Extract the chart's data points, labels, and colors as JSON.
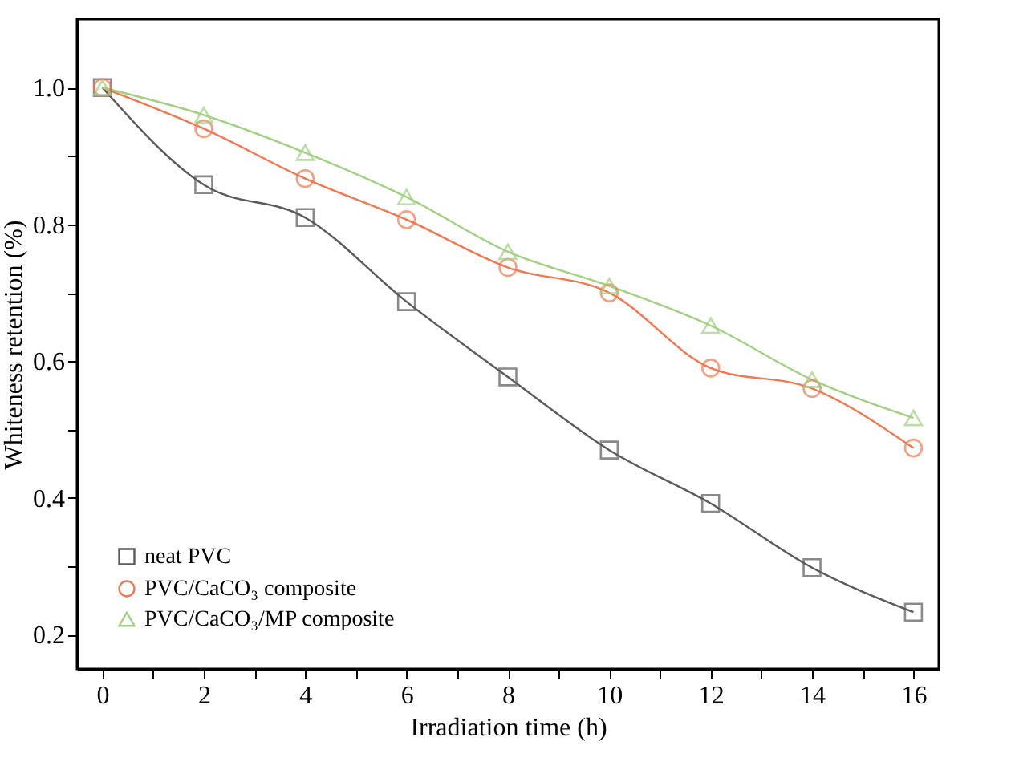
{
  "chart_data": {
    "type": "line",
    "xlabel": "Irradiation time (h)",
    "ylabel": "Whiteness retention (%)",
    "x": [
      0,
      2,
      4,
      6,
      8,
      10,
      12,
      14,
      16
    ],
    "series": [
      {
        "name": "neat PVC",
        "color": "#5a5a5a",
        "marker": "square",
        "values": [
          1.0,
          0.858,
          0.81,
          0.687,
          0.577,
          0.47,
          0.392,
          0.298,
          0.233
        ]
      },
      {
        "name": "PVC/CaCO₃ composite",
        "color": "#f07850",
        "marker": "circle",
        "values": [
          1.0,
          0.94,
          0.867,
          0.807,
          0.737,
          0.7,
          0.59,
          0.56,
          0.473
        ]
      },
      {
        "name": "PVC/CaCO₃/MP composite",
        "color": "#a0d080",
        "marker": "triangle",
        "values": [
          1.0,
          0.96,
          0.905,
          0.84,
          0.76,
          0.71,
          0.652,
          0.573,
          0.517
        ]
      }
    ],
    "xlim": [
      -0.5,
      16.5
    ],
    "xticks": [
      0,
      {
        "value": 1,
        "label": null
      },
      2,
      {
        "value": 3,
        "label": null
      },
      4,
      {
        "value": 5,
        "label": null
      },
      6,
      {
        "value": 7,
        "label": null
      },
      8,
      {
        "value": 9,
        "label": null
      },
      10,
      {
        "value": 11,
        "label": null
      },
      12,
      {
        "value": 13,
        "label": null
      },
      14,
      {
        "value": 15,
        "label": null
      },
      16
    ],
    "ylim": [
      0.15,
      1.1
    ],
    "yticks": [
      {
        "value": 0.2,
        "label": "0.2"
      },
      {
        "value": 0.3,
        "label": null
      },
      {
        "value": 0.4,
        "label": "0.4"
      },
      {
        "value": 0.5,
        "label": null
      },
      {
        "value": 0.6,
        "label": "0.6"
      },
      {
        "value": 0.7,
        "label": null
      },
      {
        "value": 0.8,
        "label": "0.8"
      },
      {
        "value": 0.9,
        "label": null
      },
      {
        "value": 1.0,
        "label": "1.0"
      }
    ],
    "legend": "bottom left",
    "grid": false,
    "line_style": "solid"
  }
}
